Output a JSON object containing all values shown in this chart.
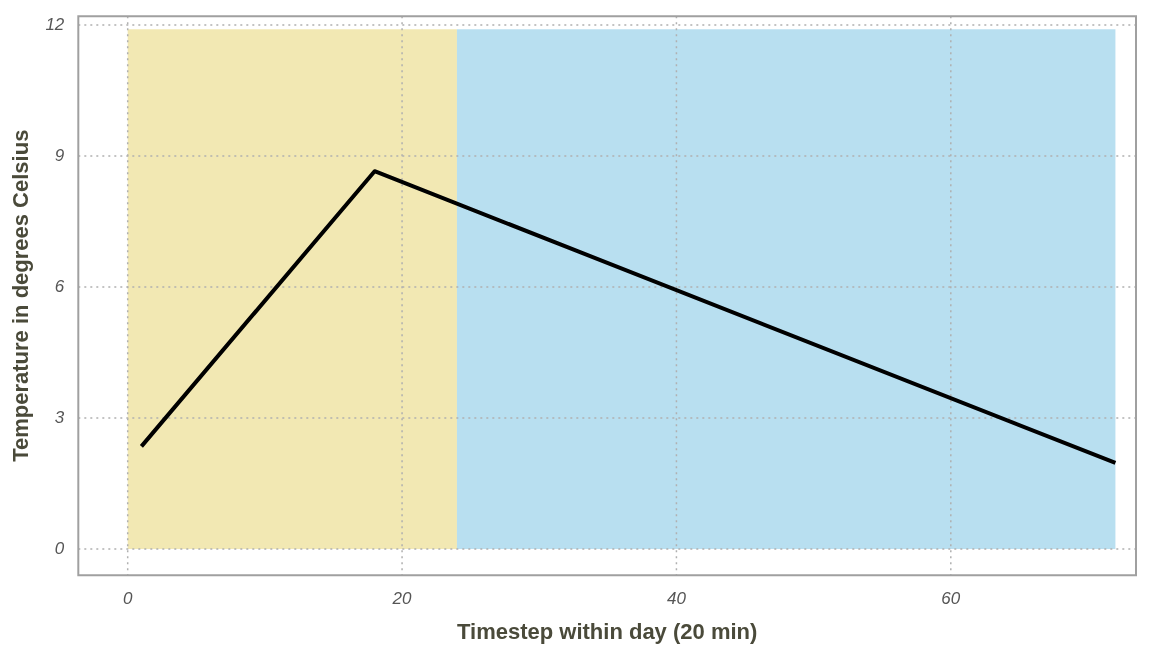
{
  "chart_data": {
    "type": "line",
    "xlabel": "Timestep within day (20 min)",
    "ylabel": "Temperature in degrees Celsius",
    "x": [
      1,
      18,
      72
    ],
    "series": [
      {
        "color": "#000000",
        "values": [
          2.35,
          8.65,
          1.97
        ]
      }
    ],
    "xlim": [
      -3.6,
      73.5
    ],
    "ylim": [
      -0.6,
      12.2
    ],
    "xticks": [
      0,
      20,
      40,
      60
    ],
    "yticks": [
      0,
      3,
      6,
      9,
      12
    ],
    "bands": [
      {
        "axis": "x",
        "from": 0,
        "to": 24,
        "color": "#f2e8b3"
      },
      {
        "axis": "x",
        "from": 24,
        "to": 72,
        "color": "#b8dff0"
      }
    ],
    "grid": true,
    "legend": false,
    "marker": "none",
    "line_style": "solid"
  }
}
